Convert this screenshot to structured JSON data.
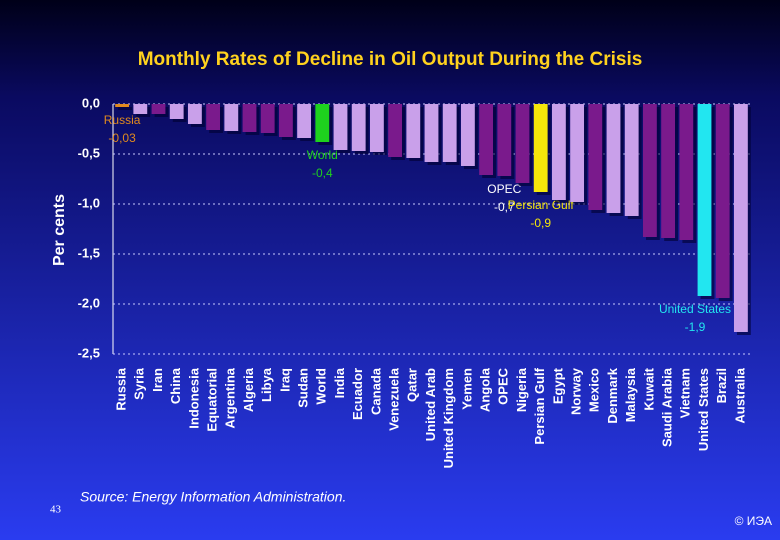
{
  "chart_data": {
    "type": "bar",
    "title": "Monthly Rates of Decline in Oil Output During the Crisis",
    "y_label": "Per cents",
    "source": "Source: Energy Information Administration.",
    "page_number": "43",
    "copyright": "© ИЭА",
    "categories": [
      "Russia",
      "Syria",
      "Iran",
      "China",
      "Indonesia",
      "Equatorial",
      "Argentina",
      "Algeria",
      "Libya",
      "Iraq",
      "Sudan",
      "World",
      "India",
      "Ecuador",
      "Canada",
      "Venezuela",
      "Qatar",
      "United Arab",
      "United Kingdom",
      "Yemen",
      "Angola",
      "OPEC",
      "Nigeria",
      "Persian Gulf",
      "Egypt",
      "Norway",
      "Mexico",
      "Denmark",
      "Malaysia",
      "Kuwait",
      "Saudi Arabia",
      "Vietnam",
      "United States",
      "Brazil",
      "Australia"
    ],
    "values": [
      -0.03,
      -0.1,
      -0.1,
      -0.15,
      -0.2,
      -0.26,
      -0.27,
      -0.28,
      -0.29,
      -0.33,
      -0.34,
      -0.38,
      -0.46,
      -0.47,
      -0.48,
      -0.53,
      -0.54,
      -0.58,
      -0.58,
      -0.62,
      -0.71,
      -0.72,
      -0.79,
      -0.88,
      -0.96,
      -0.98,
      -1.06,
      -1.09,
      -1.12,
      -1.33,
      -1.34,
      -1.36,
      -1.92,
      -1.94,
      -2.28
    ],
    "value_labels": [
      "-0,03",
      null,
      null,
      null,
      null,
      null,
      null,
      null,
      null,
      null,
      null,
      "-0,4",
      null,
      null,
      null,
      null,
      null,
      null,
      null,
      null,
      null,
      "-0,7",
      null,
      "-0,9",
      null,
      null,
      null,
      null,
      null,
      null,
      null,
      null,
      "-1,9",
      null,
      null
    ],
    "colors": [
      "#e08a1e",
      "#c9a0ea",
      "#7a1a8c",
      "#c9a0ea",
      "#c9a0ea",
      "#7a1a8c",
      "#c9a0ea",
      "#7a1a8c",
      "#7a1a8c",
      "#7a1a8c",
      "#c9a0ea",
      "#1ed21e",
      "#c9a0ea",
      "#c9a0ea",
      "#c9a0ea",
      "#7a1a8c",
      "#c9a0ea",
      "#c9a0ea",
      "#c9a0ea",
      "#c9a0ea",
      "#7a1a8c",
      "#7a1a8c",
      "#7a1a8c",
      "#f5e60a",
      "#c9a0ea",
      "#c9a0ea",
      "#7a1a8c",
      "#c9a0ea",
      "#c9a0ea",
      "#7a1a8c",
      "#7a1a8c",
      "#7a1a8c",
      "#22e6f0",
      "#7a1a8c",
      "#c9a0ea"
    ],
    "ylim": [
      -2.5,
      0
    ],
    "yticks": [
      {
        "value": 0,
        "label": "0,0"
      },
      {
        "value": -0.5,
        "label": "-0,5"
      },
      {
        "value": -1,
        "label": "-1,0"
      },
      {
        "value": -1.5,
        "label": "-1,5"
      },
      {
        "value": -2,
        "label": "-2,0"
      },
      {
        "value": -2.5,
        "label": "-2,5"
      }
    ],
    "grid": true
  }
}
